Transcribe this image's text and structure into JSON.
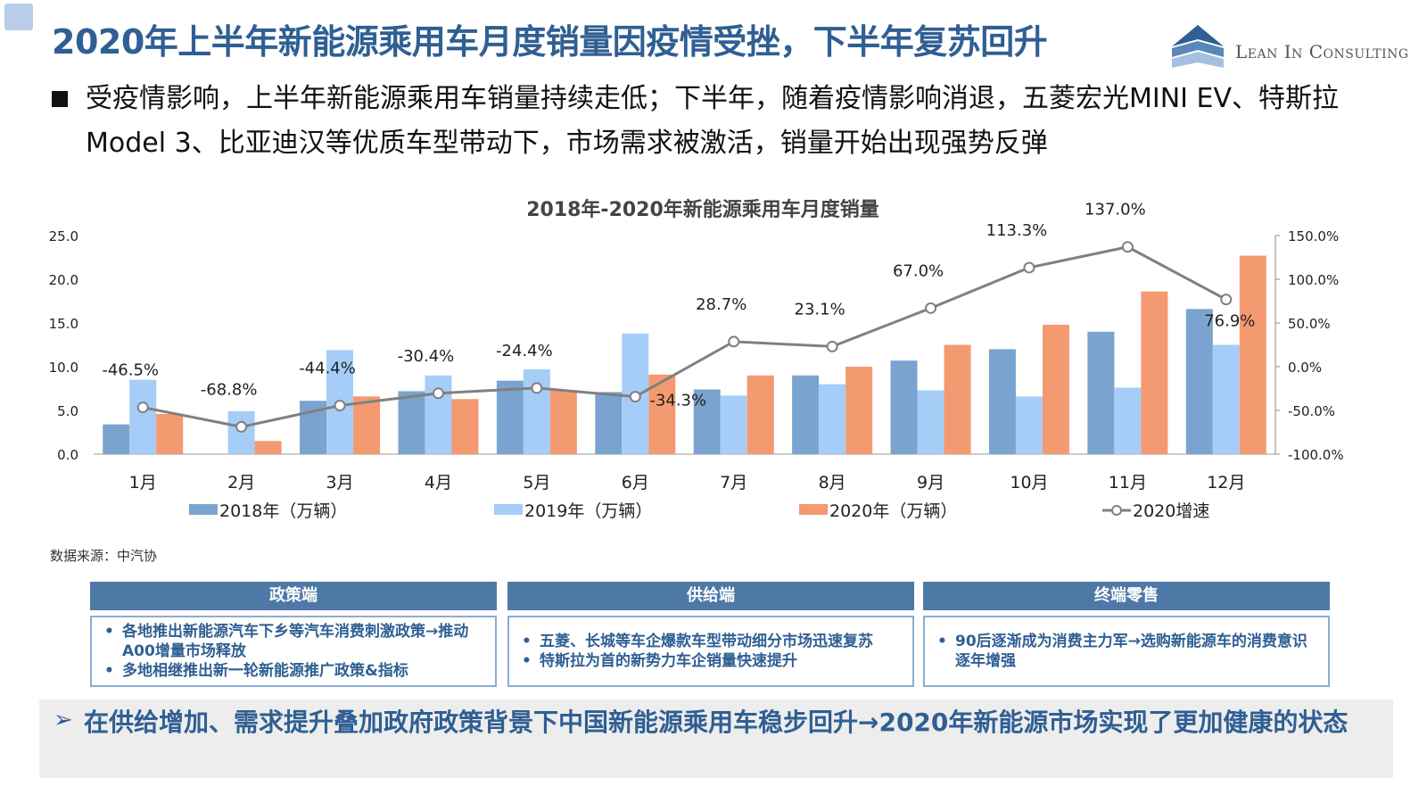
{
  "header": {
    "title": "2020年上半年新能源乘用车月度销量因疫情受挫，下半年复苏回升",
    "logo_text": "Lean In Consulting"
  },
  "bullet": {
    "text": "受疫情影响，上半年新能源乘用车销量持续走低；下半年，随着疫情影响消退，五菱宏光MINI EV、特斯拉Model 3、比亚迪汉等优质车型带动下，市场需求被激活，销量开始出现强势反弹"
  },
  "chart_data": {
    "type": "bar",
    "title": "2018年-2020年新能源乘用车月度销量",
    "categories": [
      "1月",
      "2月",
      "3月",
      "4月",
      "5月",
      "6月",
      "7月",
      "8月",
      "9月",
      "10月",
      "11月",
      "12月"
    ],
    "series": [
      {
        "name": "2018年（万辆）",
        "type": "bar",
        "axis": "left",
        "color": "#7aa4cf",
        "values": [
          3.4,
          0,
          6.1,
          7.2,
          8.4,
          7.1,
          7.4,
          9.0,
          10.7,
          12.0,
          14.0,
          16.6
        ]
      },
      {
        "name": "2019年（万辆）",
        "type": "bar",
        "axis": "left",
        "color": "#a6cdf7",
        "values": [
          8.5,
          4.9,
          11.9,
          9.0,
          9.7,
          13.8,
          6.7,
          8.0,
          7.3,
          6.6,
          7.6,
          12.5
        ]
      },
      {
        "name": "2020年（万辆）",
        "type": "bar",
        "axis": "left",
        "color": "#f39a70",
        "values": [
          4.6,
          1.5,
          6.6,
          6.3,
          7.3,
          9.1,
          9.0,
          10.0,
          12.5,
          14.8,
          18.6,
          22.7
        ]
      },
      {
        "name": "2020增速",
        "type": "line",
        "axis": "right",
        "color": "#808080",
        "values": [
          -46.5,
          -68.8,
          -44.4,
          -30.4,
          -24.4,
          -34.3,
          28.7,
          23.1,
          67.0,
          113.3,
          137.0,
          76.9
        ],
        "labels": [
          "-46.5%",
          "-68.8%",
          "-44.4%",
          "-30.4%",
          "-24.4%",
          "-34.3%",
          "28.7%",
          "23.1%",
          "67.0%",
          "113.3%",
          "137.0%",
          "76.9%"
        ]
      }
    ],
    "ylim": [
      0,
      25
    ],
    "y2lim": [
      -100,
      150
    ],
    "yticks": [
      "0.0",
      "5.0",
      "10.0",
      "15.0",
      "20.0",
      "25.0"
    ],
    "y2ticks": [
      "-100.0%",
      "-50.0%",
      "0.0%",
      "50.0%",
      "100.0%",
      "150.0%"
    ],
    "grid": false,
    "legend_position": "bottom"
  },
  "source_note": "数据来源：中汽协",
  "boxes": [
    {
      "header": "政策端",
      "items": [
        "各地推出新能源汽车下乡等汽车消费刺激政策→推动A00增量市场释放",
        "多地相继推出新一轮新能源推广政策&指标"
      ]
    },
    {
      "header": "供给端",
      "items": [
        "五菱、长城等车企爆款车型带动细分市场迅速复苏",
        "特斯拉为首的新势力车企销量快速提升"
      ]
    },
    {
      "header": "终端零售",
      "items": [
        "90后逐渐成为消费主力军→选购新能源车的消费意识逐年增强"
      ]
    }
  ],
  "conclusion": {
    "arrow": "➢",
    "text": "在供给增加、需求提升叠加政府政策背景下中国新能源乘用车稳步回升→2020年新能源市场实现了更加健康的状态"
  },
  "colors": {
    "title_blue": "#2f5f93",
    "box_header": "#4e79a7",
    "box_border": "#8aacd2"
  }
}
